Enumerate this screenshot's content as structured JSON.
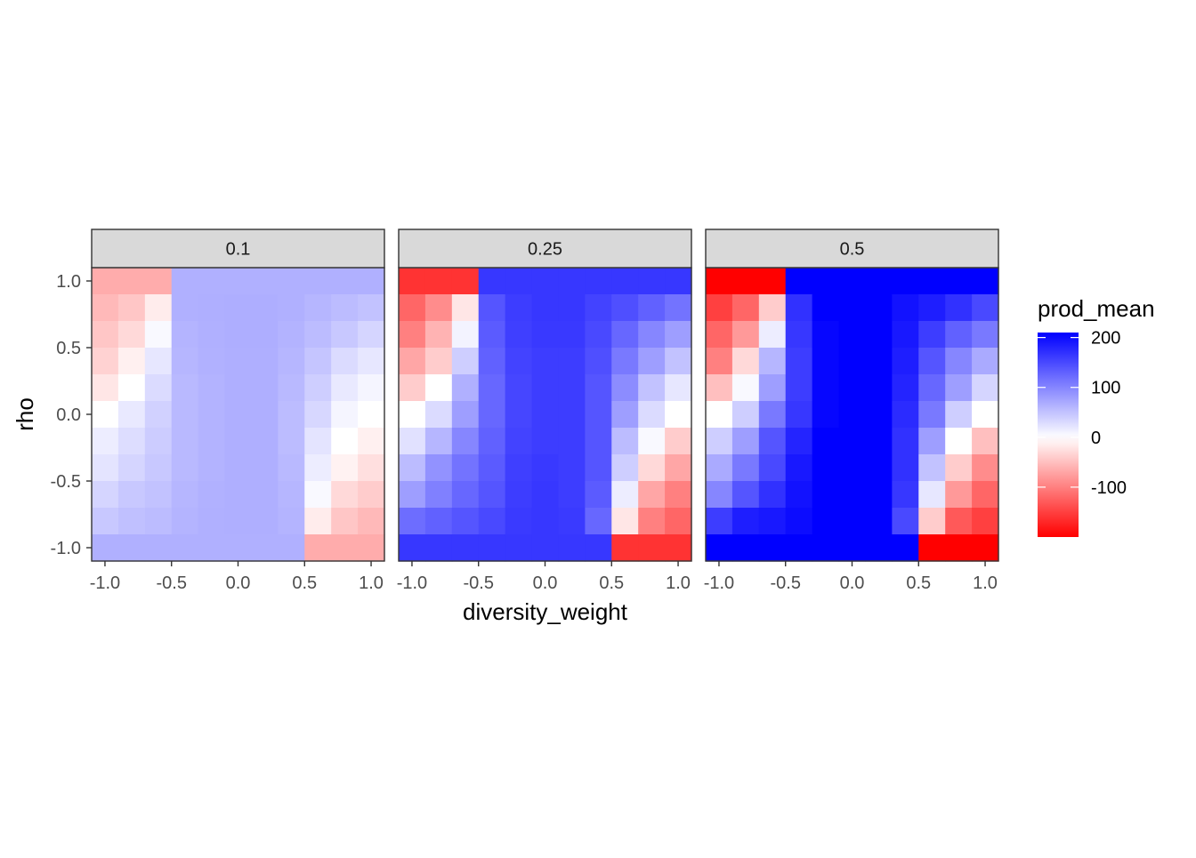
{
  "chart_data": {
    "type": "heatmap",
    "facet_variable_values": [
      "0.1",
      "0.25",
      "0.5"
    ],
    "xlabel": "diversity_weight",
    "ylabel": "rho",
    "x_ticks": [
      "-1.0",
      "-0.5",
      "0.0",
      "0.5",
      "1.0"
    ],
    "y_ticks": [
      "-1.0",
      "-0.5",
      "0.0",
      "0.5",
      "1.0"
    ],
    "xlim": [
      -1.1,
      1.1
    ],
    "ylim": [
      -1.1,
      1.1
    ],
    "x": [
      -1.0,
      -0.8,
      -0.6,
      -0.4,
      -0.2,
      0.0,
      0.2,
      0.4,
      0.6,
      0.8,
      1.0
    ],
    "y": [
      1.0,
      0.8,
      0.6,
      0.4,
      0.2,
      0.0,
      -0.2,
      -0.4,
      -0.6,
      -0.8,
      -1.0
    ],
    "grid": true,
    "legend": {
      "title": "prod_mean",
      "position": "right",
      "ticks": [
        "200",
        "100",
        "0",
        "-100"
      ],
      "tick_values": [
        200,
        100,
        0,
        -100
      ],
      "range": [
        -200,
        210
      ],
      "colors": {
        "low": "#ff0000",
        "mid": "#ffffff",
        "high": "#0000ff"
      }
    },
    "panels": [
      {
        "label": "0.1",
        "z": [
          [
            -65,
            -65,
            -65,
            65,
            65,
            65,
            65,
            65,
            65,
            65,
            65
          ],
          [
            -55,
            -45,
            -15,
            65,
            66,
            67,
            67,
            65,
            60,
            55,
            50
          ],
          [
            -45,
            -30,
            5,
            62,
            65,
            67,
            67,
            63,
            55,
            45,
            35
          ],
          [
            -35,
            -12,
            20,
            60,
            64,
            66,
            66,
            60,
            48,
            30,
            20
          ],
          [
            -20,
            0,
            30,
            58,
            63,
            66,
            66,
            58,
            40,
            18,
            8
          ],
          [
            0,
            18,
            38,
            58,
            63,
            66,
            66,
            55,
            33,
            8,
            0
          ],
          [
            15,
            28,
            42,
            58,
            63,
            66,
            66,
            55,
            22,
            0,
            -12
          ],
          [
            22,
            35,
            45,
            58,
            63,
            66,
            66,
            58,
            15,
            -10,
            -25
          ],
          [
            35,
            45,
            50,
            60,
            64,
            66,
            66,
            60,
            5,
            -30,
            -40
          ],
          [
            45,
            52,
            55,
            62,
            65,
            66,
            66,
            62,
            -15,
            -45,
            -55
          ],
          [
            65,
            65,
            65,
            65,
            65,
            65,
            65,
            65,
            -65,
            -65,
            -65
          ]
        ]
      },
      {
        "label": "0.25",
        "z": [
          [
            -160,
            -160,
            -160,
            165,
            165,
            165,
            165,
            165,
            165,
            165,
            165
          ],
          [
            -120,
            -90,
            -20,
            140,
            160,
            165,
            165,
            155,
            145,
            130,
            115
          ],
          [
            -100,
            -60,
            10,
            135,
            158,
            163,
            163,
            150,
            125,
            100,
            80
          ],
          [
            -70,
            -40,
            40,
            130,
            155,
            160,
            160,
            145,
            110,
            80,
            50
          ],
          [
            -40,
            0,
            65,
            125,
            152,
            160,
            160,
            140,
            95,
            50,
            20
          ],
          [
            0,
            30,
            80,
            125,
            152,
            160,
            160,
            140,
            80,
            30,
            0
          ],
          [
            25,
            60,
            100,
            130,
            155,
            160,
            160,
            140,
            55,
            5,
            -40
          ],
          [
            55,
            90,
            115,
            135,
            158,
            163,
            160,
            140,
            40,
            -30,
            -70
          ],
          [
            80,
            105,
            125,
            140,
            160,
            165,
            160,
            135,
            15,
            -70,
            -100
          ],
          [
            120,
            130,
            140,
            150,
            162,
            165,
            162,
            125,
            -20,
            -100,
            -120
          ],
          [
            165,
            165,
            165,
            165,
            165,
            165,
            165,
            165,
            -160,
            -160,
            -160
          ]
        ]
      },
      {
        "label": "0.5",
        "z": [
          [
            -210,
            -210,
            -210,
            220,
            220,
            220,
            220,
            220,
            220,
            220,
            220
          ],
          [
            -150,
            -120,
            -40,
            170,
            210,
            215,
            215,
            195,
            185,
            170,
            150
          ],
          [
            -120,
            -80,
            15,
            165,
            205,
            212,
            212,
            190,
            160,
            130,
            110
          ],
          [
            -100,
            -30,
            60,
            160,
            205,
            210,
            210,
            185,
            140,
            100,
            70
          ],
          [
            -50,
            5,
            80,
            160,
            205,
            210,
            210,
            180,
            125,
            80,
            35
          ],
          [
            0,
            40,
            110,
            165,
            205,
            212,
            210,
            175,
            110,
            40,
            0
          ],
          [
            40,
            80,
            140,
            180,
            210,
            215,
            210,
            170,
            80,
            0,
            -50
          ],
          [
            70,
            110,
            150,
            190,
            210,
            215,
            210,
            170,
            50,
            -40,
            -90
          ],
          [
            100,
            140,
            170,
            195,
            212,
            215,
            212,
            165,
            20,
            -80,
            -120
          ],
          [
            160,
            185,
            190,
            200,
            215,
            220,
            215,
            150,
            -40,
            -130,
            -150
          ],
          [
            220,
            220,
            220,
            220,
            220,
            220,
            220,
            220,
            -210,
            -210,
            -210
          ]
        ]
      }
    ]
  }
}
